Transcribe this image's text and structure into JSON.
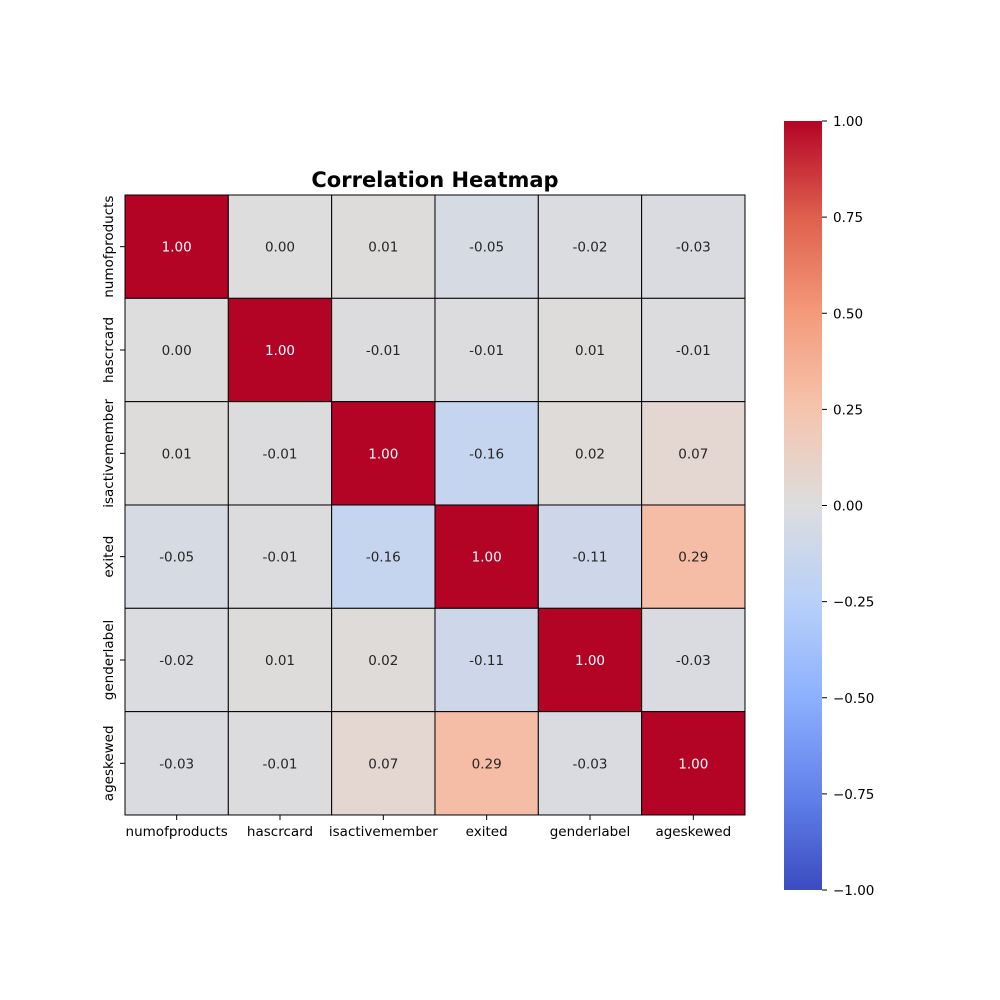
{
  "chart_data": {
    "type": "heatmap",
    "title": "Correlation Heatmap",
    "xlabel": "",
    "ylabel": "",
    "row_labels": [
      "numofproducts",
      "hascrcard",
      "isactivemember",
      "exited",
      "genderlabel",
      "ageskewed"
    ],
    "col_labels": [
      "numofproducts",
      "hascrcard",
      "isactivemember",
      "exited",
      "genderlabel",
      "ageskewed"
    ],
    "values": [
      [
        1.0,
        0.0,
        0.01,
        -0.05,
        -0.02,
        -0.03
      ],
      [
        0.0,
        1.0,
        -0.01,
        -0.01,
        0.01,
        -0.01
      ],
      [
        0.01,
        -0.01,
        1.0,
        -0.16,
        0.02,
        0.07
      ],
      [
        -0.05,
        -0.01,
        -0.16,
        1.0,
        -0.11,
        0.29
      ],
      [
        -0.02,
        0.01,
        0.02,
        -0.11,
        1.0,
        -0.03
      ],
      [
        -0.03,
        -0.01,
        0.07,
        0.29,
        -0.03,
        1.0
      ]
    ],
    "annotation_format": "2 decimals",
    "colormap": "coolwarm",
    "color_range": [
      -1.0,
      1.0
    ],
    "colorbar_ticks": [
      "1.00",
      "0.75",
      "0.50",
      "0.25",
      "0.00",
      "−0.25",
      "−0.50",
      "−0.75",
      "−1.00"
    ],
    "colorbar_tick_values": [
      1.0,
      0.75,
      0.5,
      0.25,
      0.0,
      -0.25,
      -0.5,
      -0.75,
      -1.0
    ],
    "cell_border_color": "#000000",
    "colorbar_placement": "right",
    "grid": false
  }
}
